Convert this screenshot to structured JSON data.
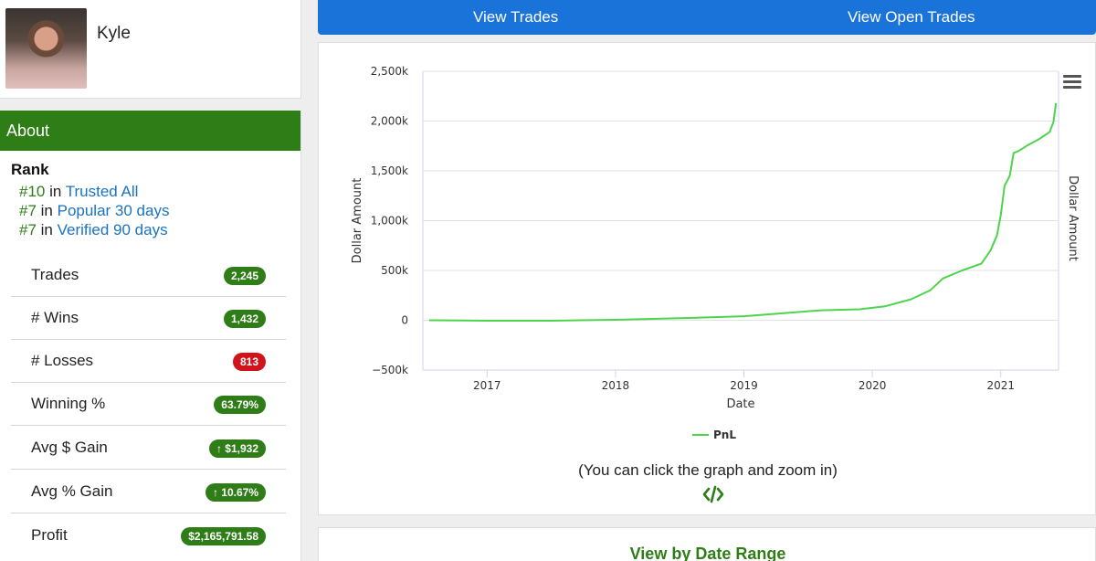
{
  "profile": {
    "name": "Kyle"
  },
  "about": {
    "header": "About",
    "rank_title": "Rank",
    "ranks": [
      {
        "num": "#10",
        "in": " in ",
        "link": "Trusted All"
      },
      {
        "num": "#7",
        "in": " in ",
        "link": "Popular 30 days"
      },
      {
        "num": "#7",
        "in": " in ",
        "link": "Verified 90 days"
      }
    ],
    "stats": [
      {
        "label": "Trades",
        "value": "2,245",
        "color": "green"
      },
      {
        "label": "# Wins",
        "value": "1,432",
        "color": "green"
      },
      {
        "label": "# Losses",
        "value": "813",
        "color": "red"
      },
      {
        "label": "Winning %",
        "value": "63.79%",
        "color": "green"
      },
      {
        "label": "Avg $ Gain",
        "value": "↑ $1,932",
        "color": "green"
      },
      {
        "label": "Avg % Gain",
        "value": "↑ 10.67%",
        "color": "green"
      },
      {
        "label": "Profit",
        "value": "$2,165,791.58",
        "color": "green"
      }
    ]
  },
  "nav": {
    "view_trades": "View Trades",
    "view_open_trades": "View Open Trades"
  },
  "chart_hint": "(You can click the graph and zoom in)",
  "date_range_title": "View by Date Range",
  "colors": {
    "brand_green": "#2e7d17",
    "nav_blue": "#1a73d9",
    "link_blue": "#1a73c0",
    "loss_red": "#d0141c",
    "line_green": "#4cd44c"
  },
  "chart_data": {
    "type": "line",
    "xlabel": "Date",
    "ylabel": "Dollar Amount",
    "ylabel_right": "Dollar Amount",
    "ylim": [
      -500,
      2500
    ],
    "yticks": [
      -500,
      0,
      500,
      1000,
      1500,
      2000,
      2500
    ],
    "ytick_labels": [
      "−500k",
      "0",
      "500k",
      "1,000k",
      "1,500k",
      "2,000k",
      "2,500k"
    ],
    "xlim": [
      2016.5,
      2021.45
    ],
    "xticks": [
      2017,
      2018,
      2019,
      2020,
      2021
    ],
    "xtick_labels": [
      "2017",
      "2018",
      "2019",
      "2020",
      "2021"
    ],
    "grid": true,
    "legend": "bottom-center",
    "series": [
      {
        "name": "PnL",
        "color": "#4cd44c",
        "x": [
          2016.55,
          2017.0,
          2017.5,
          2018.0,
          2018.5,
          2019.0,
          2019.3,
          2019.6,
          2019.9,
          2020.1,
          2020.3,
          2020.45,
          2020.55,
          2020.7,
          2020.85,
          2020.92,
          2020.97,
          2021.0,
          2021.03,
          2021.07,
          2021.1,
          2021.14,
          2021.2,
          2021.3,
          2021.38,
          2021.41,
          2021.43
        ],
        "y": [
          0,
          -5,
          -5,
          5,
          20,
          40,
          70,
          100,
          110,
          140,
          210,
          300,
          420,
          500,
          570,
          700,
          850,
          1050,
          1350,
          1450,
          1680,
          1700,
          1750,
          1820,
          1890,
          1990,
          2180
        ]
      }
    ]
  }
}
